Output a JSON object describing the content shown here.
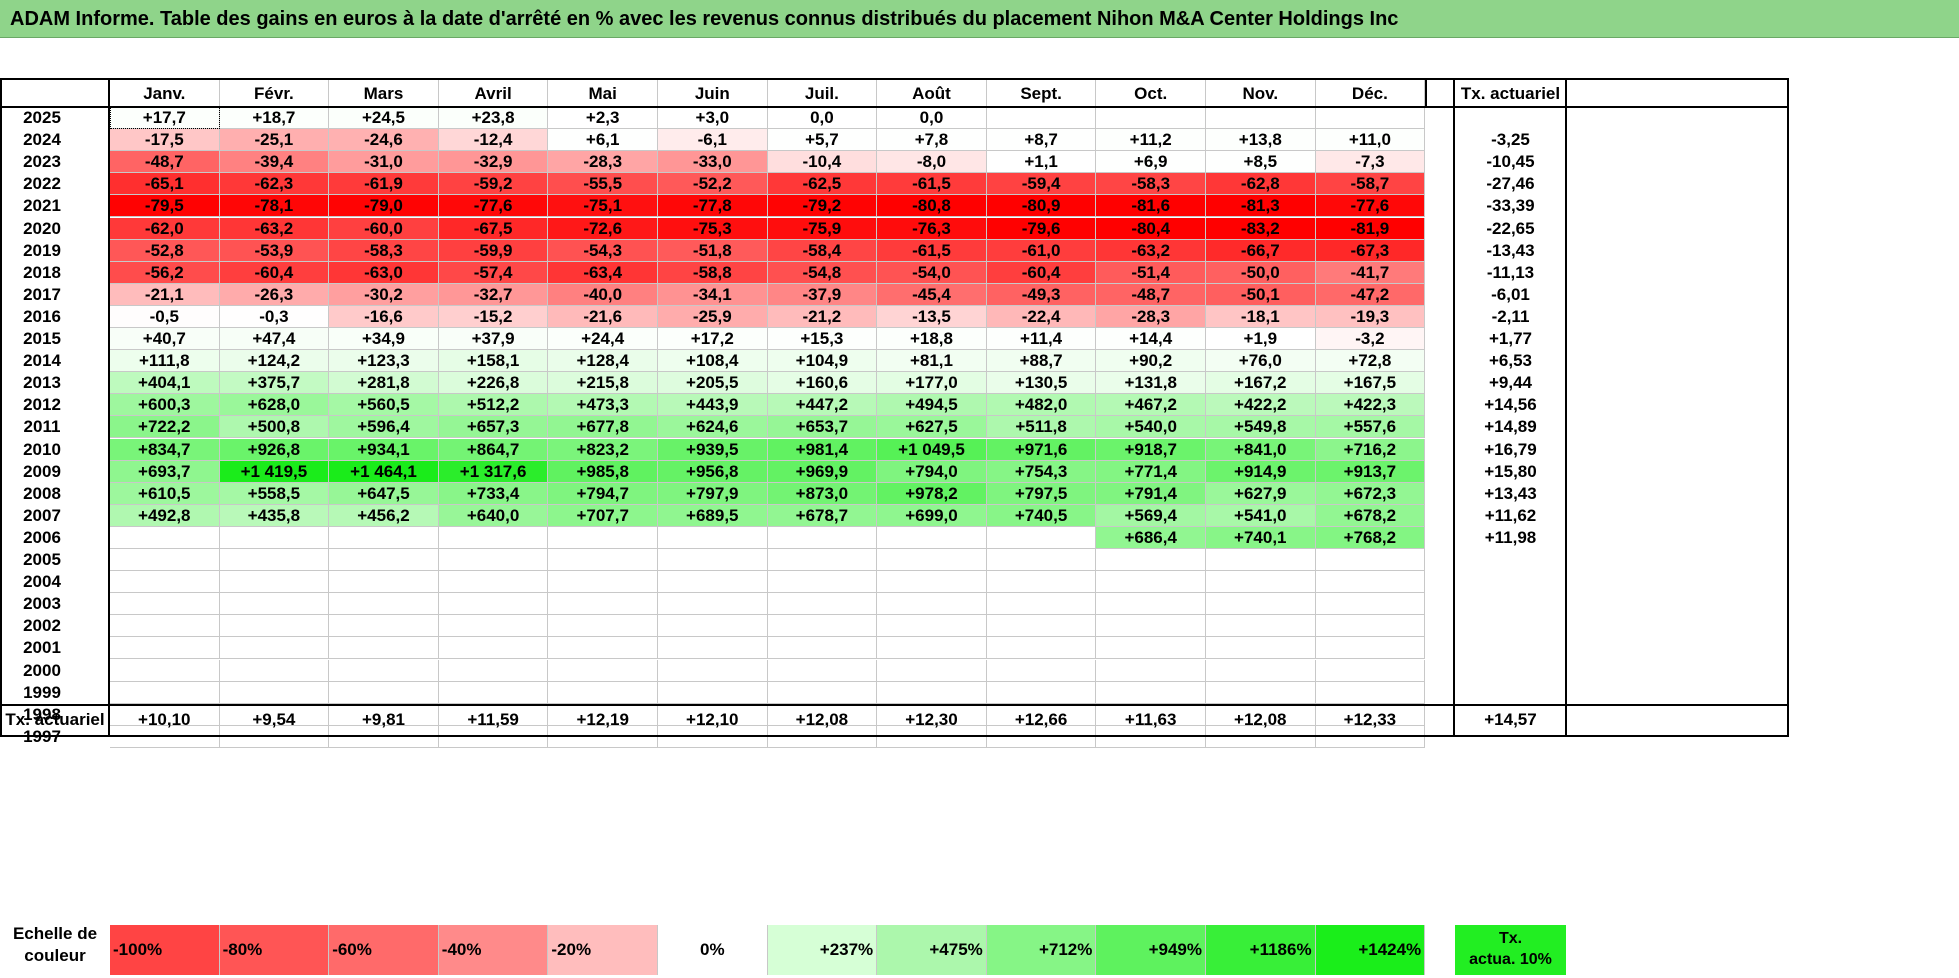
{
  "title": "ADAM Informe. Table des gains en euros à la date d'arrêté en % avec les revenus connus distribués du placement Nihon M&A Center Holdings Inc",
  "months": [
    "Janv.",
    "Févr.",
    "Mars",
    "Avril",
    "Mai",
    "Juin",
    "Juil.",
    "Août",
    "Sept.",
    "Oct.",
    "Nov.",
    "Déc."
  ],
  "rate_header": "Tx. actuariel",
  "rows": [
    {
      "year": "2025",
      "values": [
        "+17,7",
        "+18,7",
        "+24,5",
        "+23,8",
        "+2,3",
        "+3,0",
        "0,0",
        "0,0",
        "",
        "",
        "",
        ""
      ],
      "rate": ""
    },
    {
      "year": "2024",
      "values": [
        "-17,5",
        "-25,1",
        "-24,6",
        "-12,4",
        "+6,1",
        "-6,1",
        "+5,7",
        "+7,8",
        "+8,7",
        "+11,2",
        "+13,8",
        "+11,0"
      ],
      "rate": "-3,25"
    },
    {
      "year": "2023",
      "values": [
        "-48,7",
        "-39,4",
        "-31,0",
        "-32,9",
        "-28,3",
        "-33,0",
        "-10,4",
        "-8,0",
        "+1,1",
        "+6,9",
        "+8,5",
        "-7,3"
      ],
      "rate": "-10,45"
    },
    {
      "year": "2022",
      "values": [
        "-65,1",
        "-62,3",
        "-61,9",
        "-59,2",
        "-55,5",
        "-52,2",
        "-62,5",
        "-61,5",
        "-59,4",
        "-58,3",
        "-62,8",
        "-58,7"
      ],
      "rate": "-27,46"
    },
    {
      "year": "2021",
      "values": [
        "-79,5",
        "-78,1",
        "-79,0",
        "-77,6",
        "-75,1",
        "-77,8",
        "-79,2",
        "-80,8",
        "-80,9",
        "-81,6",
        "-81,3",
        "-77,6"
      ],
      "rate": "-33,39"
    },
    {
      "year": "2020",
      "values": [
        "-62,0",
        "-63,2",
        "-60,0",
        "-67,5",
        "-72,6",
        "-75,3",
        "-75,9",
        "-76,3",
        "-79,6",
        "-80,4",
        "-83,2",
        "-81,9"
      ],
      "rate": "-22,65"
    },
    {
      "year": "2019",
      "values": [
        "-52,8",
        "-53,9",
        "-58,3",
        "-59,9",
        "-54,3",
        "-51,8",
        "-58,4",
        "-61,5",
        "-61,0",
        "-63,2",
        "-66,7",
        "-67,3"
      ],
      "rate": "-13,43"
    },
    {
      "year": "2018",
      "values": [
        "-56,2",
        "-60,4",
        "-63,0",
        "-57,4",
        "-63,4",
        "-58,8",
        "-54,8",
        "-54,0",
        "-60,4",
        "-51,4",
        "-50,0",
        "-41,7"
      ],
      "rate": "-11,13"
    },
    {
      "year": "2017",
      "values": [
        "-21,1",
        "-26,3",
        "-30,2",
        "-32,7",
        "-40,0",
        "-34,1",
        "-37,9",
        "-45,4",
        "-49,3",
        "-48,7",
        "-50,1",
        "-47,2"
      ],
      "rate": "-6,01"
    },
    {
      "year": "2016",
      "values": [
        "-0,5",
        "-0,3",
        "-16,6",
        "-15,2",
        "-21,6",
        "-25,9",
        "-21,2",
        "-13,5",
        "-22,4",
        "-28,3",
        "-18,1",
        "-19,3"
      ],
      "rate": "-2,11"
    },
    {
      "year": "2015",
      "values": [
        "+40,7",
        "+47,4",
        "+34,9",
        "+37,9",
        "+24,4",
        "+17,2",
        "+15,3",
        "+18,8",
        "+11,4",
        "+14,4",
        "+1,9",
        "-3,2"
      ],
      "rate": "+1,77"
    },
    {
      "year": "2014",
      "values": [
        "+111,8",
        "+124,2",
        "+123,3",
        "+158,1",
        "+128,4",
        "+108,4",
        "+104,9",
        "+81,1",
        "+88,7",
        "+90,2",
        "+76,0",
        "+72,8"
      ],
      "rate": "+6,53"
    },
    {
      "year": "2013",
      "values": [
        "+404,1",
        "+375,7",
        "+281,8",
        "+226,8",
        "+215,8",
        "+205,5",
        "+160,6",
        "+177,0",
        "+130,5",
        "+131,8",
        "+167,2",
        "+167,5"
      ],
      "rate": "+9,44"
    },
    {
      "year": "2012",
      "values": [
        "+600,3",
        "+628,0",
        "+560,5",
        "+512,2",
        "+473,3",
        "+443,9",
        "+447,2",
        "+494,5",
        "+482,0",
        "+467,2",
        "+422,2",
        "+422,3"
      ],
      "rate": "+14,56"
    },
    {
      "year": "2011",
      "values": [
        "+722,2",
        "+500,8",
        "+596,4",
        "+657,3",
        "+677,8",
        "+624,6",
        "+653,7",
        "+627,5",
        "+511,8",
        "+540,0",
        "+549,8",
        "+557,6"
      ],
      "rate": "+14,89"
    },
    {
      "year": "2010",
      "values": [
        "+834,7",
        "+926,8",
        "+934,1",
        "+864,7",
        "+823,2",
        "+939,5",
        "+981,4",
        "+1 049,5",
        "+971,6",
        "+918,7",
        "+841,0",
        "+716,2"
      ],
      "rate": "+16,79"
    },
    {
      "year": "2009",
      "values": [
        "+693,7",
        "+1 419,5",
        "+1 464,1",
        "+1 317,6",
        "+985,8",
        "+956,8",
        "+969,9",
        "+794,0",
        "+754,3",
        "+771,4",
        "+914,9",
        "+913,7"
      ],
      "rate": "+15,80"
    },
    {
      "year": "2008",
      "values": [
        "+610,5",
        "+558,5",
        "+647,5",
        "+733,4",
        "+794,7",
        "+797,9",
        "+873,0",
        "+978,2",
        "+797,5",
        "+791,4",
        "+627,9",
        "+672,3"
      ],
      "rate": "+13,43"
    },
    {
      "year": "2007",
      "values": [
        "+492,8",
        "+435,8",
        "+456,2",
        "+640,0",
        "+707,7",
        "+689,5",
        "+678,7",
        "+699,0",
        "+740,5",
        "+569,4",
        "+541,0",
        "+678,2"
      ],
      "rate": "+11,62"
    },
    {
      "year": "2006",
      "values": [
        "",
        "",
        "",
        "",
        "",
        "",
        "",
        "",
        "",
        "+686,4",
        "+740,1",
        "+768,2"
      ],
      "rate": "+11,98"
    },
    {
      "year": "2005",
      "values": [
        "",
        "",
        "",
        "",
        "",
        "",
        "",
        "",
        "",
        "",
        "",
        ""
      ],
      "rate": ""
    },
    {
      "year": "2004",
      "values": [
        "",
        "",
        "",
        "",
        "",
        "",
        "",
        "",
        "",
        "",
        "",
        ""
      ],
      "rate": ""
    },
    {
      "year": "2003",
      "values": [
        "",
        "",
        "",
        "",
        "",
        "",
        "",
        "",
        "",
        "",
        "",
        ""
      ],
      "rate": ""
    },
    {
      "year": "2002",
      "values": [
        "",
        "",
        "",
        "",
        "",
        "",
        "",
        "",
        "",
        "",
        "",
        ""
      ],
      "rate": ""
    },
    {
      "year": "2001",
      "values": [
        "",
        "",
        "",
        "",
        "",
        "",
        "",
        "",
        "",
        "",
        "",
        ""
      ],
      "rate": ""
    },
    {
      "year": "2000",
      "values": [
        "",
        "",
        "",
        "",
        "",
        "",
        "",
        "",
        "",
        "",
        "",
        ""
      ],
      "rate": ""
    },
    {
      "year": "1999",
      "values": [
        "",
        "",
        "",
        "",
        "",
        "",
        "",
        "",
        "",
        "",
        "",
        ""
      ],
      "rate": ""
    },
    {
      "year": "1998",
      "values": [
        "",
        "",
        "",
        "",
        "",
        "",
        "",
        "",
        "",
        "",
        "",
        ""
      ],
      "rate": ""
    },
    {
      "year": "1997",
      "values": [
        "",
        "",
        "",
        "",
        "",
        "",
        "",
        "",
        "",
        "",
        "",
        ""
      ],
      "rate": ""
    }
  ],
  "total_row": {
    "label": "Tx. actuariel",
    "values": [
      "+10,10",
      "+9,54",
      "+9,81",
      "+11,59",
      "+12,19",
      "+12,10",
      "+12,08",
      "+12,30",
      "+12,66",
      "+11,63",
      "+12,08",
      "+12,33"
    ],
    "rate": "+14,57"
  },
  "scale": {
    "label_line1": "Echelle de",
    "label_line2": "couleur",
    "items": [
      {
        "label": "-100%",
        "color": "#ff4444",
        "align": "left"
      },
      {
        "label": "-80%",
        "color": "#ff5555",
        "align": "left"
      },
      {
        "label": "-60%",
        "color": "#ff6a6a",
        "align": "left"
      },
      {
        "label": "-40%",
        "color": "#ff8a8a",
        "align": "left"
      },
      {
        "label": "-20%",
        "color": "#ffbdbd",
        "align": "left"
      },
      {
        "label": "0%",
        "color": "#ffffff",
        "align": "center"
      },
      {
        "label": "+237%",
        "color": "#d6ffd6",
        "align": "right"
      },
      {
        "label": "+475%",
        "color": "#acf7ac",
        "align": "right"
      },
      {
        "label": "+712%",
        "color": "#86f586",
        "align": "right"
      },
      {
        "label": "+949%",
        "color": "#5ef25e",
        "align": "right"
      },
      {
        "label": "+1186%",
        "color": "#38ef38",
        "align": "right"
      },
      {
        "label": "+1424%",
        "color": "#1aee1a",
        "align": "right"
      }
    ],
    "rate_line1": "Tx.",
    "rate_line2": "actua. 10%",
    "rate_color": "#22ee22"
  },
  "colors": {
    "title_bar": "#8fd48a",
    "negative_max": "#ff0000",
    "positive_max": "#22ee22"
  }
}
